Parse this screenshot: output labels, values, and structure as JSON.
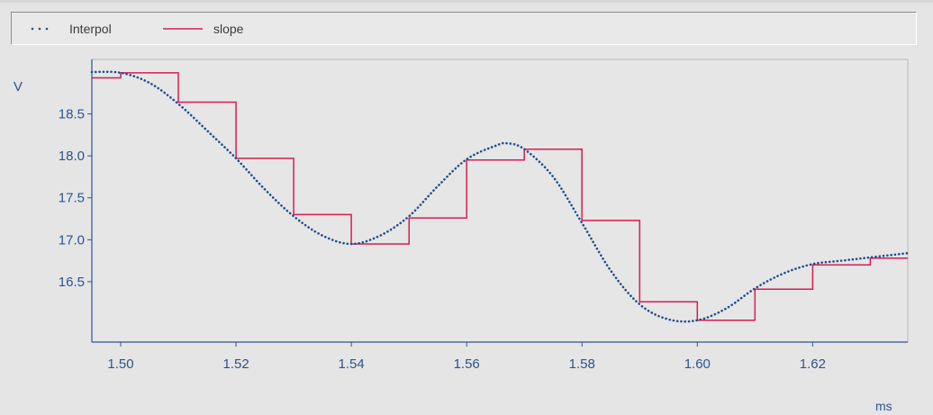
{
  "chart_data": {
    "type": "line",
    "xlabel": "ms",
    "ylabel": "V",
    "xlim": [
      1.495,
      1.6365
    ],
    "ylim": [
      15.78,
      19.15
    ],
    "x_ticks": [
      "1.50",
      "1.52",
      "1.54",
      "1.56",
      "1.58",
      "1.60",
      "1.62"
    ],
    "x_tick_values": [
      1.5,
      1.52,
      1.54,
      1.56,
      1.58,
      1.6,
      1.62
    ],
    "y_ticks": [
      "16.5",
      "17.0",
      "17.5",
      "18.0",
      "18.5"
    ],
    "y_tick_values": [
      16.5,
      17.0,
      17.5,
      18.0,
      18.5
    ],
    "legend_position": "top",
    "colors": {
      "interpol": "#1f4f8c",
      "slope": "#d81c52",
      "axis": "#2a5590",
      "tick_label": "#2a5590",
      "plot_bg": "#e6e6e6"
    },
    "series": [
      {
        "name": "Interpol",
        "style": "dotted",
        "x": [
          1.495,
          1.5,
          1.505,
          1.51,
          1.515,
          1.52,
          1.525,
          1.53,
          1.535,
          1.54,
          1.545,
          1.55,
          1.555,
          1.56,
          1.565,
          1.567,
          1.57,
          1.575,
          1.58,
          1.585,
          1.59,
          1.595,
          1.6,
          1.605,
          1.61,
          1.615,
          1.62,
          1.625,
          1.63,
          1.6365
        ],
        "y": [
          19.0,
          18.99,
          18.87,
          18.62,
          18.3,
          17.97,
          17.6,
          17.28,
          17.05,
          16.95,
          17.05,
          17.28,
          17.64,
          17.96,
          18.12,
          18.15,
          18.08,
          17.75,
          17.2,
          16.63,
          16.23,
          16.05,
          16.04,
          16.18,
          16.42,
          16.6,
          16.71,
          16.75,
          16.79,
          16.84
        ]
      },
      {
        "name": "slope",
        "style": "step",
        "x": [
          1.495,
          1.5,
          1.51,
          1.52,
          1.53,
          1.54,
          1.55,
          1.56,
          1.57,
          1.58,
          1.59,
          1.6,
          1.61,
          1.62,
          1.63,
          1.6365
        ],
        "y": [
          18.93,
          18.99,
          18.64,
          17.97,
          17.3,
          16.95,
          17.26,
          17.95,
          18.08,
          17.23,
          16.26,
          16.04,
          16.41,
          16.7,
          16.78,
          16.78
        ]
      }
    ]
  }
}
